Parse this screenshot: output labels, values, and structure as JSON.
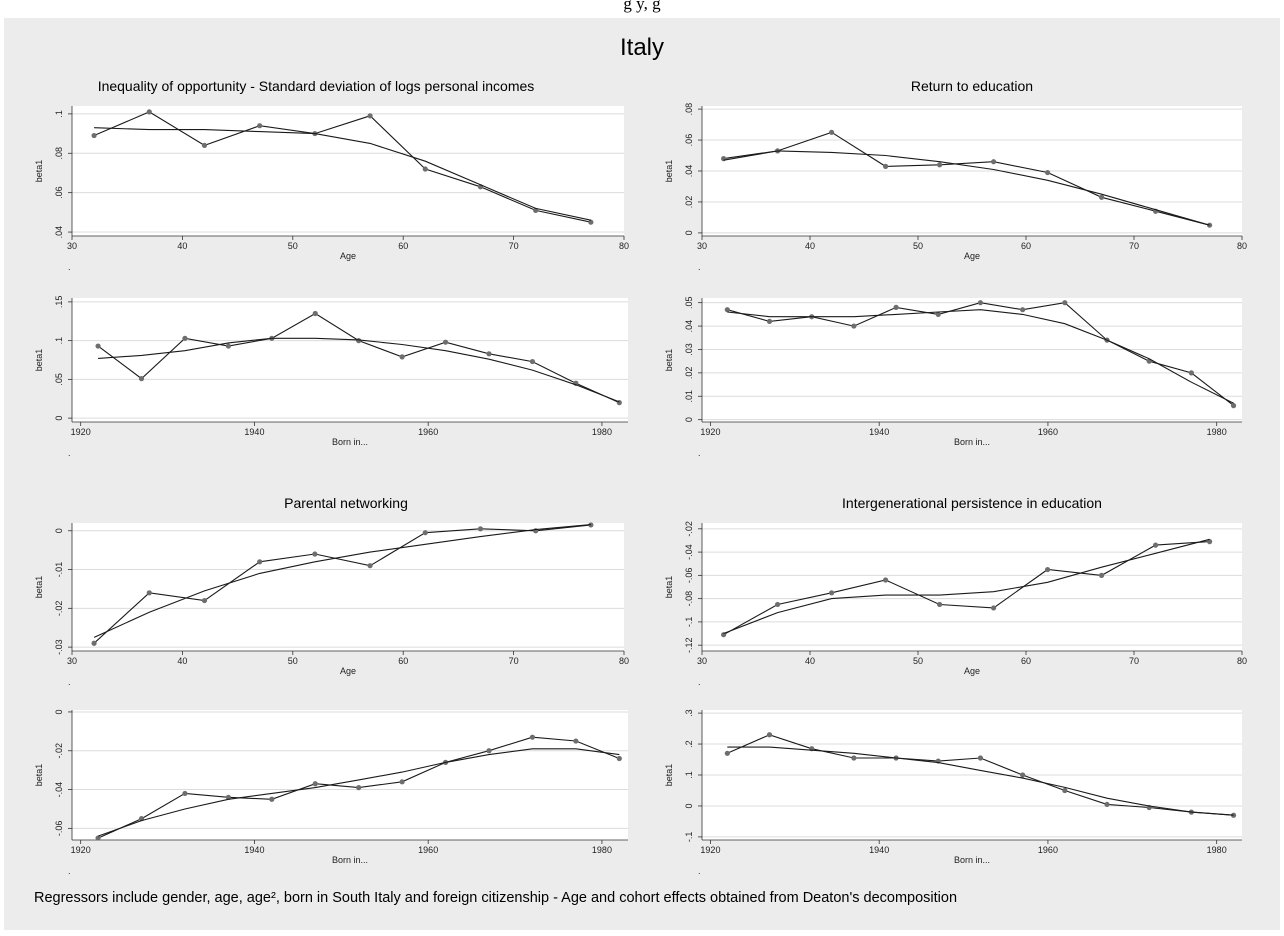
{
  "page": {
    "header_fragment": "g        y, g",
    "country_title": "Italy",
    "footnote": "Regressors include gender, age, age², born in South Italy and foreign citizenship - Age and cohort effects obtained from Deaton's decomposition"
  },
  "colors": {
    "panel_bg": "#ececec",
    "plot_bg": "#ffffff",
    "line": "#1a1a1a",
    "marker": "#6e6e6e",
    "grid": "#dcdcdc"
  },
  "chart_data": [
    {
      "type": "line",
      "panel": 1,
      "title": "Inequality of opportunity - Standard deviation of logs personal incomes",
      "xlabel": "Age",
      "ylabel": "beta1",
      "xlim": [
        30,
        80
      ],
      "ylim": [
        0.038,
        0.104
      ],
      "xticks": [
        30,
        40,
        50,
        60,
        70,
        80
      ],
      "xtick_labels": [
        "30",
        "40",
        "50",
        "60",
        "70",
        "80"
      ],
      "yticks": [
        0.04,
        0.06,
        0.08,
        0.1
      ],
      "ytick_labels": [
        ".04",
        ".06",
        ".08",
        ".1"
      ],
      "series": [
        {
          "x": [
            32,
            37,
            42,
            47,
            52,
            57,
            62,
            67,
            72,
            77
          ],
          "y": [
            0.089,
            0.101,
            0.084,
            0.094,
            0.09,
            0.099,
            0.072,
            0.063,
            0.051,
            0.045
          ],
          "markers": true
        },
        {
          "x": [
            32,
            37,
            42,
            47,
            52,
            57,
            62,
            67,
            72,
            77
          ],
          "y": [
            0.093,
            0.092,
            0.092,
            0.091,
            0.09,
            0.085,
            0.076,
            0.064,
            0.052,
            0.046
          ],
          "markers": false
        }
      ]
    },
    {
      "type": "line",
      "panel": 1,
      "title": "",
      "xlabel": "Born in...",
      "ylabel": "beta1",
      "xlim": [
        1919,
        1983
      ],
      "ylim": [
        -0.005,
        0.155
      ],
      "xticks": [
        1920,
        1940,
        1960,
        1980
      ],
      "xtick_labels": [
        "1920",
        "1940",
        "1960",
        "1980"
      ],
      "yticks": [
        0,
        0.05,
        0.1,
        0.15
      ],
      "ytick_labels": [
        "0",
        ".05",
        ".1",
        ".15"
      ],
      "series": [
        {
          "x": [
            1922,
            1927,
            1932,
            1937,
            1942,
            1947,
            1952,
            1957,
            1962,
            1967,
            1972,
            1977,
            1982
          ],
          "y": [
            0.093,
            0.051,
            0.103,
            0.093,
            0.103,
            0.135,
            0.1,
            0.079,
            0.098,
            0.083,
            0.073,
            0.045,
            0.02
          ],
          "markers": true
        },
        {
          "x": [
            1922,
            1927,
            1932,
            1937,
            1942,
            1947,
            1952,
            1957,
            1962,
            1967,
            1972,
            1977,
            1982
          ],
          "y": [
            0.077,
            0.081,
            0.087,
            0.097,
            0.103,
            0.103,
            0.101,
            0.095,
            0.087,
            0.076,
            0.062,
            0.043,
            0.021
          ],
          "markers": false
        }
      ]
    },
    {
      "type": "line",
      "panel": 2,
      "title": "Return to education",
      "xlabel": "Age",
      "ylabel": "beta1",
      "xlim": [
        30,
        80
      ],
      "ylim": [
        -0.002,
        0.082
      ],
      "xticks": [
        30,
        40,
        50,
        60,
        70,
        80
      ],
      "xtick_labels": [
        "30",
        "40",
        "50",
        "60",
        "70",
        "80"
      ],
      "yticks": [
        0,
        0.02,
        0.04,
        0.06,
        0.08
      ],
      "ytick_labels": [
        "0",
        ".02",
        ".04",
        ".06",
        ".08"
      ],
      "series": [
        {
          "x": [
            32,
            37,
            42,
            47,
            52,
            57,
            62,
            67,
            72,
            77
          ],
          "y": [
            0.048,
            0.053,
            0.065,
            0.043,
            0.044,
            0.046,
            0.039,
            0.023,
            0.014,
            0.005
          ],
          "markers": true
        },
        {
          "x": [
            32,
            37,
            42,
            47,
            52,
            57,
            62,
            67,
            72,
            77
          ],
          "y": [
            0.047,
            0.053,
            0.052,
            0.05,
            0.046,
            0.041,
            0.034,
            0.025,
            0.015,
            0.005
          ],
          "markers": false
        }
      ]
    },
    {
      "type": "line",
      "panel": 2,
      "title": "",
      "xlabel": "Born in...",
      "ylabel": "beta1",
      "xlim": [
        1919,
        1983
      ],
      "ylim": [
        -0.001,
        0.052
      ],
      "xticks": [
        1920,
        1940,
        1960,
        1980
      ],
      "xtick_labels": [
        "1920",
        "1940",
        "1960",
        "1980"
      ],
      "yticks": [
        0,
        0.01,
        0.02,
        0.03,
        0.04,
        0.05
      ],
      "ytick_labels": [
        "0",
        ".01",
        ".02",
        ".03",
        ".04",
        ".05"
      ],
      "series": [
        {
          "x": [
            1922,
            1927,
            1932,
            1937,
            1942,
            1947,
            1952,
            1957,
            1962,
            1967,
            1972,
            1977,
            1982
          ],
          "y": [
            0.047,
            0.042,
            0.044,
            0.04,
            0.048,
            0.045,
            0.05,
            0.047,
            0.05,
            0.034,
            0.025,
            0.02,
            0.006
          ],
          "markers": true
        },
        {
          "x": [
            1922,
            1927,
            1932,
            1937,
            1942,
            1947,
            1952,
            1957,
            1962,
            1967,
            1972,
            1977,
            1982
          ],
          "y": [
            0.046,
            0.044,
            0.044,
            0.044,
            0.045,
            0.046,
            0.047,
            0.045,
            0.041,
            0.034,
            0.026,
            0.016,
            0.007
          ],
          "markers": false
        }
      ]
    },
    {
      "type": "line",
      "panel": 3,
      "title": "Parental networking",
      "xlabel": "Age",
      "ylabel": "beta1",
      "xlim": [
        30,
        80
      ],
      "ylim": [
        -0.031,
        0.002
      ],
      "xticks": [
        30,
        40,
        50,
        60,
        70,
        80
      ],
      "xtick_labels": [
        "30",
        "40",
        "50",
        "60",
        "70",
        "80"
      ],
      "yticks": [
        -0.03,
        -0.02,
        -0.01,
        0
      ],
      "ytick_labels": [
        "-.03",
        "-.02",
        "-.01",
        "0"
      ],
      "series": [
        {
          "x": [
            32,
            37,
            42,
            47,
            52,
            57,
            62,
            67,
            72,
            77
          ],
          "y": [
            -0.029,
            -0.016,
            -0.018,
            -0.008,
            -0.006,
            -0.009,
            -0.0005,
            0.0005,
            0.0,
            0.0015
          ],
          "markers": true
        },
        {
          "x": [
            32,
            37,
            42,
            47,
            52,
            57,
            62,
            67,
            72,
            77
          ],
          "y": [
            -0.0275,
            -0.021,
            -0.0155,
            -0.011,
            -0.008,
            -0.0055,
            -0.0035,
            -0.0015,
            0.0003,
            0.0016
          ],
          "markers": false
        }
      ]
    },
    {
      "type": "line",
      "panel": 3,
      "title": "",
      "xlabel": "Born in...",
      "ylabel": "beta1",
      "xlim": [
        1919,
        1983
      ],
      "ylim": [
        -0.066,
        0.001
      ],
      "xticks": [
        1920,
        1940,
        1960,
        1980
      ],
      "xtick_labels": [
        "1920",
        "1940",
        "1960",
        "1980"
      ],
      "yticks": [
        -0.06,
        -0.04,
        -0.02,
        0
      ],
      "ytick_labels": [
        "-.06",
        "-.04",
        "-.02",
        "0"
      ],
      "series": [
        {
          "x": [
            1922,
            1927,
            1932,
            1937,
            1942,
            1947,
            1952,
            1957,
            1962,
            1967,
            1972,
            1977,
            1982
          ],
          "y": [
            -0.065,
            -0.055,
            -0.042,
            -0.044,
            -0.045,
            -0.037,
            -0.039,
            -0.036,
            -0.026,
            -0.02,
            -0.013,
            -0.015,
            -0.024
          ],
          "markers": true
        },
        {
          "x": [
            1922,
            1927,
            1932,
            1937,
            1942,
            1947,
            1952,
            1957,
            1962,
            1967,
            1972,
            1977,
            1982
          ],
          "y": [
            -0.064,
            -0.056,
            -0.05,
            -0.045,
            -0.042,
            -0.039,
            -0.035,
            -0.031,
            -0.026,
            -0.022,
            -0.019,
            -0.019,
            -0.022
          ],
          "markers": false
        }
      ]
    },
    {
      "type": "line",
      "panel": 4,
      "title": "Intergenerational persistence in education",
      "xlabel": "Age",
      "ylabel": "beta1",
      "xlim": [
        30,
        80
      ],
      "ylim": [
        -0.125,
        -0.015
      ],
      "xticks": [
        30,
        40,
        50,
        60,
        70,
        80
      ],
      "xtick_labels": [
        "30",
        "40",
        "50",
        "60",
        "70",
        "80"
      ],
      "yticks": [
        -0.12,
        -0.1,
        -0.08,
        -0.06,
        -0.04,
        -0.02
      ],
      "ytick_labels": [
        "-.12",
        "-.1",
        "-.08",
        "-.06",
        "-.04",
        "-.02"
      ],
      "series": [
        {
          "x": [
            32,
            37,
            42,
            47,
            52,
            57,
            62,
            67,
            72,
            77
          ],
          "y": [
            -0.111,
            -0.085,
            -0.075,
            -0.064,
            -0.085,
            -0.088,
            -0.055,
            -0.06,
            -0.034,
            -0.031
          ],
          "markers": true
        },
        {
          "x": [
            32,
            37,
            42,
            47,
            52,
            57,
            62,
            67,
            72,
            77
          ],
          "y": [
            -0.11,
            -0.092,
            -0.08,
            -0.077,
            -0.077,
            -0.074,
            -0.066,
            -0.053,
            -0.041,
            -0.029
          ],
          "markers": false
        }
      ]
    },
    {
      "type": "line",
      "panel": 4,
      "title": "",
      "xlabel": "Born in...",
      "ylabel": "beta1",
      "xlim": [
        1919,
        1983
      ],
      "ylim": [
        -0.11,
        0.31
      ],
      "xticks": [
        1920,
        1940,
        1960,
        1980
      ],
      "xtick_labels": [
        "1920",
        "1940",
        "1960",
        "1980"
      ],
      "yticks": [
        -0.1,
        0,
        0.1,
        0.2,
        0.3
      ],
      "ytick_labels": [
        "-.1",
        "0",
        ".1",
        ".2",
        ".3"
      ],
      "series": [
        {
          "x": [
            1922,
            1927,
            1932,
            1937,
            1942,
            1947,
            1952,
            1957,
            1962,
            1967,
            1972,
            1977,
            1982
          ],
          "y": [
            0.17,
            0.23,
            0.185,
            0.155,
            0.155,
            0.145,
            0.155,
            0.1,
            0.05,
            0.005,
            -0.005,
            -0.02,
            -0.03
          ],
          "markers": true
        },
        {
          "x": [
            1922,
            1927,
            1932,
            1937,
            1942,
            1947,
            1952,
            1957,
            1962,
            1967,
            1972,
            1977,
            1982
          ],
          "y": [
            0.19,
            0.19,
            0.18,
            0.17,
            0.155,
            0.14,
            0.115,
            0.09,
            0.06,
            0.025,
            0.0,
            -0.02,
            -0.03
          ],
          "markers": false
        }
      ]
    }
  ]
}
